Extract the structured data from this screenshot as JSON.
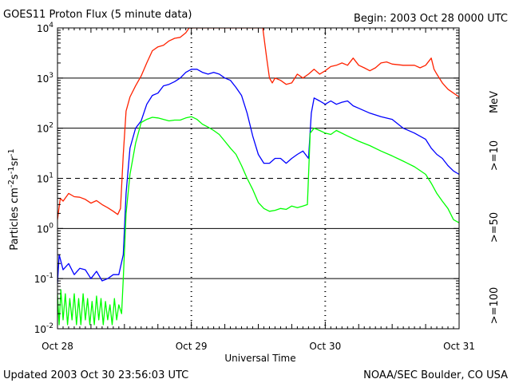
{
  "header": {
    "title": "GOES11 Proton Flux (5 minute data)",
    "begin": "Begin: 2003 Oct 28 0000 UTC"
  },
  "footer": {
    "updated": "Updated 2003 Oct 30 23:56:03 UTC",
    "credit": "NOAA/SEC Boulder, CO USA"
  },
  "chart_data": {
    "type": "line",
    "title": "GOES11 Proton Flux (5 minute data)",
    "xlabel": "Universal Time",
    "ylabel": "Particles cm-2s-1sr-1",
    "y_scale": "log",
    "ylim": [
      0.01,
      10000
    ],
    "y_ticks": [
      {
        "base": "10",
        "exp": "-2",
        "value": 0.01
      },
      {
        "base": "10",
        "exp": "-1",
        "value": 0.1
      },
      {
        "base": "10",
        "exp": "0",
        "value": 1
      },
      {
        "base": "10",
        "exp": "1",
        "value": 10
      },
      {
        "base": "10",
        "exp": "2",
        "value": 100
      },
      {
        "base": "10",
        "exp": "3",
        "value": 1000
      },
      {
        "base": "10",
        "exp": "4",
        "value": 10000
      }
    ],
    "xlim_hours": [
      0,
      72
    ],
    "x_ticks": [
      {
        "label": "Oct 28",
        "hours": 0
      },
      {
        "label": "Oct 29",
        "hours": 24
      },
      {
        "label": "Oct 30",
        "hours": 48
      },
      {
        "label": "Oct 31",
        "hours": 72
      }
    ],
    "reference_lines": [
      {
        "value": 10,
        "style": "dashed"
      },
      {
        "value": 100,
        "style": "solid"
      },
      {
        "value": 1000,
        "style": "solid"
      },
      {
        "value": 1,
        "style": "solid"
      },
      {
        "value": 0.1,
        "style": "solid"
      }
    ],
    "energy_unit": "MeV",
    "series": [
      {
        "name": ">=10",
        "color": "#ff2200",
        "points": [
          [
            0,
            1.5
          ],
          [
            0.5,
            4
          ],
          [
            1,
            3.5
          ],
          [
            2,
            5
          ],
          [
            3,
            4.3
          ],
          [
            4,
            4.2
          ],
          [
            5,
            3.8
          ],
          [
            6,
            3.2
          ],
          [
            7,
            3.6
          ],
          [
            8,
            3
          ],
          [
            9,
            2.6
          ],
          [
            10,
            2.2
          ],
          [
            10.8,
            1.9
          ],
          [
            11.3,
            2.5
          ],
          [
            11.8,
            30
          ],
          [
            12.3,
            220
          ],
          [
            13,
            420
          ],
          [
            14,
            700
          ],
          [
            15,
            1100
          ],
          [
            16,
            2000
          ],
          [
            17,
            3500
          ],
          [
            18,
            4200
          ],
          [
            19,
            4500
          ],
          [
            20,
            5500
          ],
          [
            21,
            6200
          ],
          [
            22,
            6500
          ],
          [
            23,
            8000
          ],
          [
            23.6,
            10000
          ],
          [
            36.8,
            10000
          ],
          [
            37.5,
            2500
          ],
          [
            38,
            1000
          ],
          [
            38.5,
            800
          ],
          [
            39,
            1000
          ],
          [
            40,
            900
          ],
          [
            41,
            750
          ],
          [
            42,
            800
          ],
          [
            43,
            1200
          ],
          [
            44,
            1000
          ],
          [
            45,
            1200
          ],
          [
            46,
            1500
          ],
          [
            47,
            1200
          ],
          [
            48,
            1400
          ],
          [
            49,
            1700
          ],
          [
            50,
            1800
          ],
          [
            51,
            2000
          ],
          [
            52,
            1800
          ],
          [
            53,
            2500
          ],
          [
            54,
            1800
          ],
          [
            55,
            1600
          ],
          [
            56,
            1400
          ],
          [
            57,
            1600
          ],
          [
            58,
            2000
          ],
          [
            59,
            2100
          ],
          [
            60,
            1900
          ],
          [
            62,
            1800
          ],
          [
            64,
            1800
          ],
          [
            65,
            1600
          ],
          [
            66,
            1800
          ],
          [
            67,
            2500
          ],
          [
            67.5,
            1500
          ],
          [
            68,
            1200
          ],
          [
            69,
            800
          ],
          [
            70,
            600
          ],
          [
            71,
            500
          ],
          [
            72,
            420
          ]
        ]
      },
      {
        "name": ">=50",
        "color": "#0000ff",
        "points": [
          [
            0,
            0.08
          ],
          [
            0.3,
            0.3
          ],
          [
            1,
            0.15
          ],
          [
            2,
            0.2
          ],
          [
            3,
            0.12
          ],
          [
            4,
            0.16
          ],
          [
            5,
            0.15
          ],
          [
            6,
            0.1
          ],
          [
            7,
            0.14
          ],
          [
            8,
            0.09
          ],
          [
            9,
            0.1
          ],
          [
            10,
            0.12
          ],
          [
            11,
            0.12
          ],
          [
            11.8,
            0.3
          ],
          [
            12.3,
            5
          ],
          [
            13,
            40
          ],
          [
            14,
            100
          ],
          [
            15,
            140
          ],
          [
            16,
            300
          ],
          [
            17,
            450
          ],
          [
            18,
            500
          ],
          [
            19,
            700
          ],
          [
            20,
            750
          ],
          [
            21,
            850
          ],
          [
            22,
            1000
          ],
          [
            23,
            1300
          ],
          [
            24,
            1500
          ],
          [
            25,
            1500
          ],
          [
            26,
            1300
          ],
          [
            27,
            1200
          ],
          [
            28,
            1300
          ],
          [
            29,
            1200
          ],
          [
            30,
            1000
          ],
          [
            31,
            900
          ],
          [
            32,
            650
          ],
          [
            33,
            450
          ],
          [
            34,
            200
          ],
          [
            35,
            70
          ],
          [
            36,
            30
          ],
          [
            37,
            20
          ],
          [
            38,
            20
          ],
          [
            39,
            25
          ],
          [
            40,
            25
          ],
          [
            41,
            20
          ],
          [
            42,
            25
          ],
          [
            43,
            30
          ],
          [
            44,
            35
          ],
          [
            45,
            25
          ],
          [
            45.5,
            200
          ],
          [
            46,
            400
          ],
          [
            47,
            350
          ],
          [
            48,
            300
          ],
          [
            49,
            350
          ],
          [
            50,
            300
          ],
          [
            51,
            330
          ],
          [
            52,
            350
          ],
          [
            53,
            280
          ],
          [
            54,
            250
          ],
          [
            56,
            200
          ],
          [
            58,
            170
          ],
          [
            60,
            150
          ],
          [
            62,
            100
          ],
          [
            64,
            80
          ],
          [
            66,
            60
          ],
          [
            67,
            40
          ],
          [
            68,
            30
          ],
          [
            69,
            25
          ],
          [
            70,
            18
          ],
          [
            71,
            14
          ],
          [
            72,
            12
          ]
        ]
      },
      {
        "name": ">=100",
        "color": "#00ff00",
        "points": [
          [
            0,
            0.05
          ],
          [
            0.3,
            0.012
          ],
          [
            0.6,
            0.06
          ],
          [
            1,
            0.015
          ],
          [
            1.4,
            0.05
          ],
          [
            1.8,
            0.012
          ],
          [
            2.2,
            0.04
          ],
          [
            2.6,
            0.015
          ],
          [
            3,
            0.05
          ],
          [
            3.4,
            0.012
          ],
          [
            3.8,
            0.04
          ],
          [
            4.2,
            0.012
          ],
          [
            4.6,
            0.05
          ],
          [
            5,
            0.015
          ],
          [
            5.4,
            0.04
          ],
          [
            5.8,
            0.012
          ],
          [
            6.2,
            0.035
          ],
          [
            6.6,
            0.012
          ],
          [
            7,
            0.045
          ],
          [
            7.4,
            0.015
          ],
          [
            7.8,
            0.04
          ],
          [
            8.2,
            0.012
          ],
          [
            8.6,
            0.035
          ],
          [
            9,
            0.015
          ],
          [
            9.4,
            0.03
          ],
          [
            9.8,
            0.012
          ],
          [
            10.2,
            0.04
          ],
          [
            10.6,
            0.015
          ],
          [
            11,
            0.03
          ],
          [
            11.5,
            0.02
          ],
          [
            11.8,
            0.1
          ],
          [
            12.3,
            2
          ],
          [
            13,
            12
          ],
          [
            14,
            50
          ],
          [
            15,
            130
          ],
          [
            16,
            150
          ],
          [
            17,
            165
          ],
          [
            18,
            160
          ],
          [
            19,
            150
          ],
          [
            20,
            140
          ],
          [
            21,
            145
          ],
          [
            22,
            145
          ],
          [
            23,
            160
          ],
          [
            24,
            170
          ],
          [
            25,
            150
          ],
          [
            26,
            120
          ],
          [
            27,
            105
          ],
          [
            28,
            90
          ],
          [
            29,
            75
          ],
          [
            30,
            55
          ],
          [
            31,
            40
          ],
          [
            32,
            30
          ],
          [
            33,
            18
          ],
          [
            34,
            10
          ],
          [
            35,
            6
          ],
          [
            36,
            3.3
          ],
          [
            37,
            2.5
          ],
          [
            38,
            2.2
          ],
          [
            39,
            2.3
          ],
          [
            40,
            2.5
          ],
          [
            41,
            2.4
          ],
          [
            42,
            2.8
          ],
          [
            43,
            2.6
          ],
          [
            44,
            2.8
          ],
          [
            44.8,
            3
          ],
          [
            45.3,
            80
          ],
          [
            46,
            100
          ],
          [
            47,
            90
          ],
          [
            48,
            80
          ],
          [
            49,
            75
          ],
          [
            50,
            90
          ],
          [
            52,
            70
          ],
          [
            54,
            55
          ],
          [
            56,
            45
          ],
          [
            58,
            35
          ],
          [
            60,
            28
          ],
          [
            62,
            22
          ],
          [
            64,
            17
          ],
          [
            66,
            12
          ],
          [
            67,
            8
          ],
          [
            68,
            5
          ],
          [
            69,
            3.5
          ],
          [
            70,
            2.5
          ],
          [
            71,
            1.5
          ],
          [
            72,
            1.3
          ]
        ]
      }
    ]
  }
}
